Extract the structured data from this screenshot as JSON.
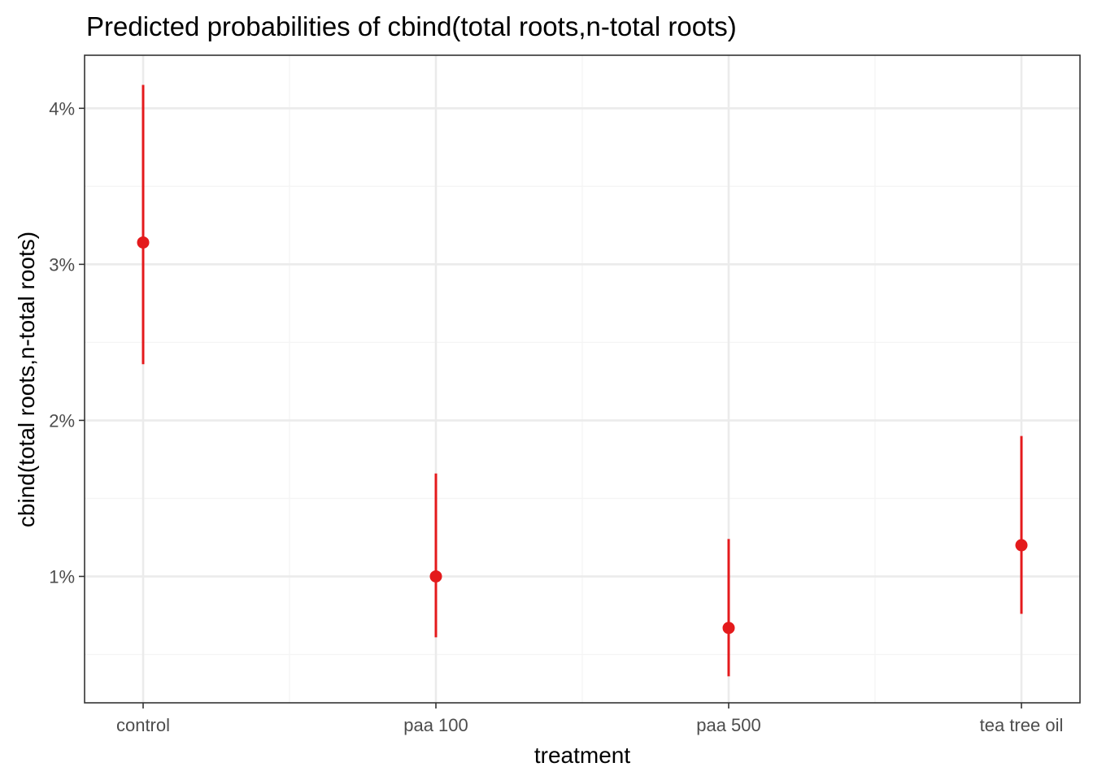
{
  "chart_data": {
    "type": "scatter",
    "title": "Predicted probabilities of cbind(total roots,n-total roots)",
    "xlabel": "treatment",
    "ylabel": "cbind(total roots,n-total roots)",
    "categories": [
      "control",
      "paa 100",
      "paa 500",
      "tea tree oil"
    ],
    "series": [
      {
        "values": [
          3.14,
          1.0,
          0.67,
          1.2
        ],
        "conf_low": [
          2.36,
          0.61,
          0.36,
          0.76
        ],
        "conf_high": [
          4.15,
          1.66,
          1.24,
          1.9
        ]
      }
    ],
    "y_unit": "%",
    "ylim": [
      0.19,
      4.34
    ],
    "y_ticks": [
      1,
      2,
      3,
      4
    ],
    "y_tick_labels": [
      "1%",
      "2%",
      "3%",
      "4%"
    ],
    "grid": true,
    "legend": "none",
    "colors": {
      "point": "#e41a1c",
      "grid_major": "#ebebeb",
      "grid_minor": "#f4f4f4",
      "panel_border": "#333333",
      "tick_text": "#4d4d4d"
    }
  }
}
